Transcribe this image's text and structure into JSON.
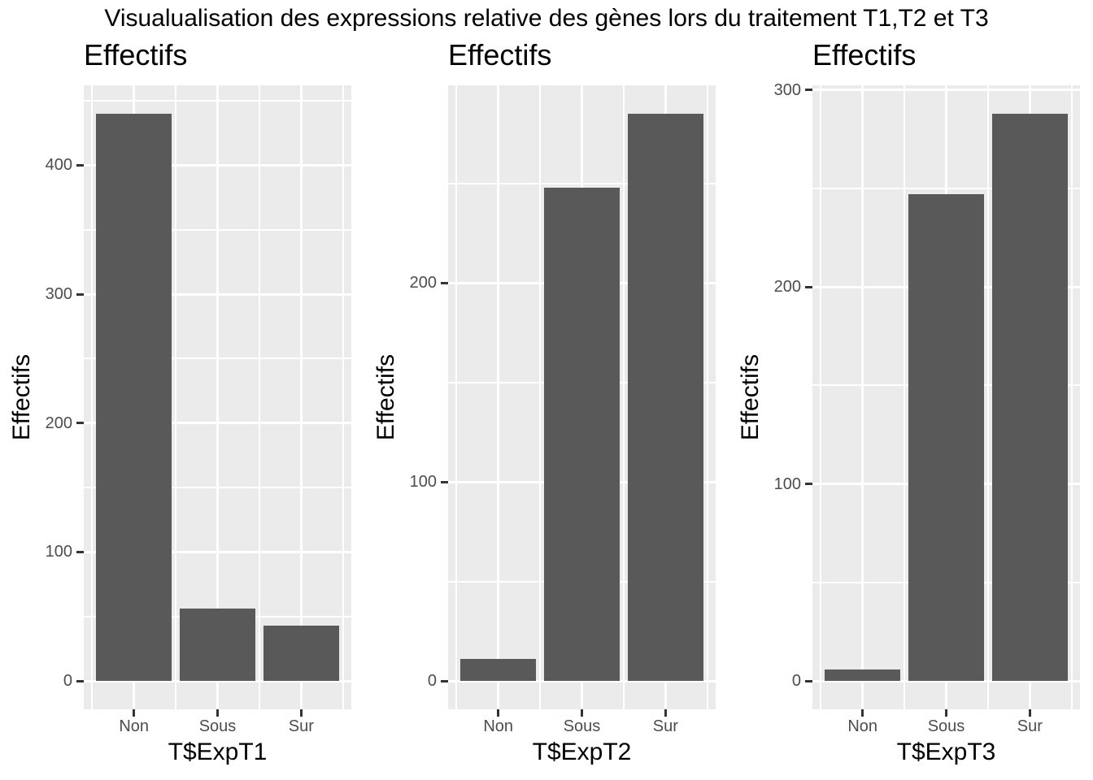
{
  "figure": {
    "title": "Visualualisation des expressions relative des gènes lors du traitement T1,T2 et T3"
  },
  "style": {
    "bar_color": "#595959",
    "panel_bg": "#EBEBEB",
    "grid_color": "#FFFFFF",
    "tick_label_color": "#4D4D4D",
    "tick_mark_color": "#333333",
    "title_color": "#000000"
  },
  "chart_data": [
    {
      "type": "bar",
      "title": "Effectifs",
      "ylabel": "Effectifs",
      "xlabel": "T$ExpT1",
      "categories": [
        "Non",
        "Sous",
        "Sur"
      ],
      "values": [
        440,
        56,
        43
      ],
      "yticks": [
        0,
        100,
        200,
        300,
        400
      ],
      "ylim": [
        -22,
        462
      ],
      "grid": true,
      "legend": false
    },
    {
      "type": "bar",
      "title": "Effectifs",
      "ylabel": "Effectifs",
      "xlabel": "T$ExpT2",
      "categories": [
        "Non",
        "Sous",
        "Sur"
      ],
      "values": [
        11,
        248,
        285
      ],
      "yticks": [
        0,
        100,
        200
      ],
      "ylim": [
        -14.25,
        299.25
      ],
      "grid": true,
      "legend": false
    },
    {
      "type": "bar",
      "title": "Effectifs",
      "ylabel": "Effectifs",
      "xlabel": "T$ExpT3",
      "categories": [
        "Non",
        "Sous",
        "Sur"
      ],
      "values": [
        6,
        247,
        288
      ],
      "yticks": [
        0,
        100,
        200,
        300
      ],
      "ylim": [
        -14.4,
        302.4
      ],
      "grid": true,
      "legend": false
    }
  ]
}
